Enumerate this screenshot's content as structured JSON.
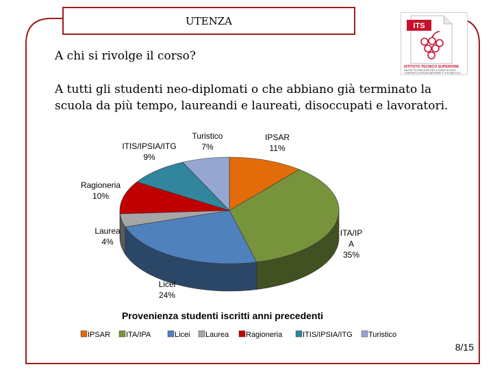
{
  "slide": {
    "title": "UTENZA",
    "heading": "A chi si rivolge il corso?",
    "description": "A tutti gli studenti neo-diplomati o che abbiano già terminato la scuola da più tempo, laureandi e laureati, disoccupati e lavoratori.",
    "page": "8/15",
    "accent_color": "#9e1b1b"
  },
  "logo": {
    "badge": "ITS",
    "line1": "ISTITUTO TECNICO SUPERIORE",
    "line2": "NUOVE TECNOLOGIE PER IL MADE IN ITALY",
    "line3": "COMPARTO AGROALIMENTARE E VITIVINICOLO",
    "badge_color": "#c8102e"
  },
  "chart_data": {
    "type": "pie",
    "title": "Provenienza studenti iscritti anni precedenti",
    "slices": [
      {
        "name": "IPSAR",
        "label_lines": [
          "IPSAR",
          "11%"
        ],
        "value": 11,
        "color": "#e36c0a"
      },
      {
        "name": "ITA/IPA",
        "label_lines": [
          "ITA/IP",
          "A",
          "35%"
        ],
        "value": 35,
        "color": "#77933c"
      },
      {
        "name": "Licei",
        "label_lines": [
          "Licei",
          "24%"
        ],
        "value": 24,
        "color": "#4f81bd"
      },
      {
        "name": "Laurea",
        "label_lines": [
          "Laurea",
          "4%"
        ],
        "value": 4,
        "color": "#a6a6a6"
      },
      {
        "name": "Ragioneria",
        "label_lines": [
          "Ragioneria",
          "10%"
        ],
        "value": 10,
        "color": "#c00000"
      },
      {
        "name": "ITIS/IPSIA/ITG",
        "label_lines": [
          "ITIS/IPSIA/ITG",
          "9%"
        ],
        "value": 9,
        "color": "#31859c"
      },
      {
        "name": "Turistico",
        "label_lines": [
          "Turistico",
          "7%"
        ],
        "value": 7,
        "color": "#95a7d0"
      }
    ],
    "legend": [
      "IPSAR",
      "ITA/IPA",
      "Licei",
      "Laurea",
      "Ragioneria",
      "ITIS/IPSIA/ITG",
      "Turistico"
    ],
    "legend_position": "bottom",
    "style": "3d"
  }
}
